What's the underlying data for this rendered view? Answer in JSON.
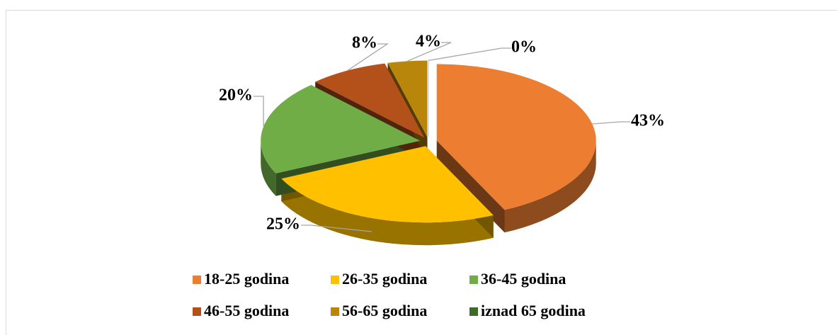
{
  "chart_data": {
    "type": "pie",
    "categories": [
      "18-25 godina",
      "26-35 godina",
      "36-45 godina",
      "46-55 godina",
      "56-65 godina",
      "iznad 65 godina"
    ],
    "values": [
      43,
      25,
      20,
      8,
      4,
      0
    ],
    "value_labels": [
      "43%",
      "25%",
      "20%",
      "8%",
      "4%",
      "0%"
    ],
    "colors": [
      "#ED7D31",
      "#FFC000",
      "#70AD47",
      "#B4501A",
      "#B8860B",
      "#3E6B2A"
    ],
    "legend": "bottom"
  }
}
